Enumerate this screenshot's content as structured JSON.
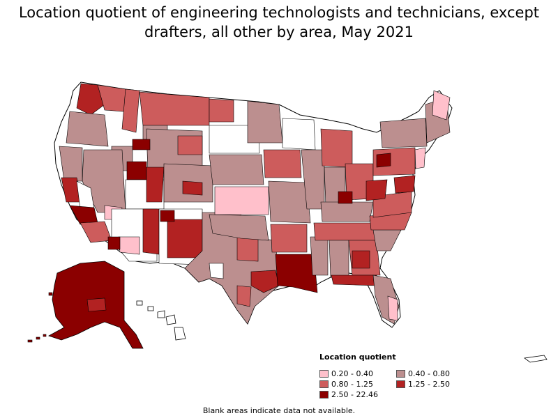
{
  "title": "Location quotient of engineering technologists and technicians, except drafters, all other by area, May 2021",
  "title_line1": "Location quotient of engineering technologists and technicians, except",
  "title_line2": "drafters, all other by area, May 2021",
  "legend": {
    "title": "Location quotient",
    "items": [
      {
        "label": "0.20 - 0.40",
        "color": "#ffc0cb"
      },
      {
        "label": "0.40 - 0.80",
        "color": "#bc8f8f"
      },
      {
        "label": "0.80 - 1.25",
        "color": "#cd5c5c"
      },
      {
        "label": "1.25 - 2.50",
        "color": "#b22222"
      },
      {
        "label": "2.50 - 22.46",
        "color": "#8b0000"
      }
    ]
  },
  "footnote": "Blank areas indicate data not available.",
  "colors": {
    "class1": "#ffc0cb",
    "class2": "#bc8f8f",
    "class3": "#cd5c5c",
    "class4": "#b22222",
    "class5": "#8b0000",
    "no_data": "#ffffff",
    "border": "#000000"
  }
}
